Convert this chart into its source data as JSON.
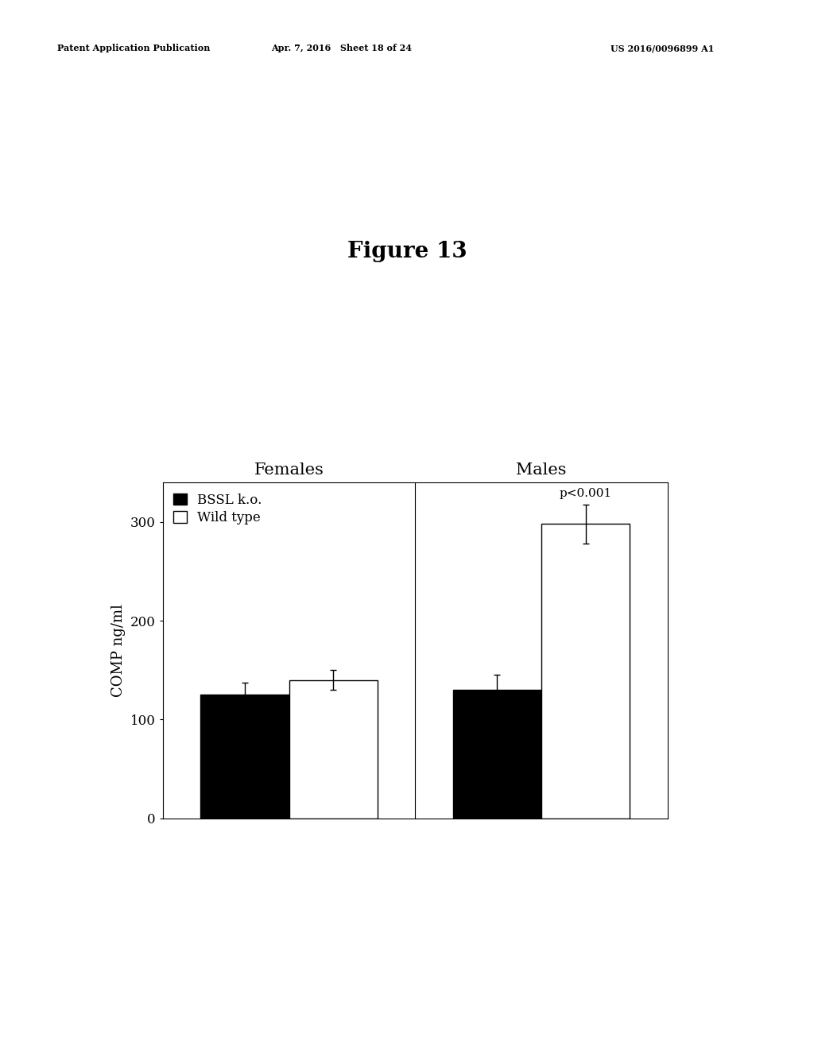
{
  "figure_title": "Figure 13",
  "header_left": "Patent Application Publication",
  "header_mid": "Apr. 7, 2016   Sheet 18 of 24",
  "header_right": "US 2016/0096899 A1",
  "groups": [
    "Females",
    "Males"
  ],
  "series": [
    "BSSL k.o.",
    "Wild type"
  ],
  "bar_colors": [
    "#000000",
    "#ffffff"
  ],
  "bar_edgecolors": [
    "#000000",
    "#000000"
  ],
  "values": [
    [
      125,
      140
    ],
    [
      130,
      298
    ]
  ],
  "errors": [
    [
      12,
      10
    ],
    [
      15,
      20
    ]
  ],
  "ylabel": "COMP ng/ml",
  "ylim": [
    0,
    340
  ],
  "yticks": [
    0,
    100,
    200,
    300
  ],
  "annotation_text": "p<0.001",
  "annotation_group": 1,
  "annotation_series": 1,
  "bar_width": 0.35,
  "background_color": "#ffffff",
  "title_fontsize": 20,
  "axis_fontsize": 13,
  "tick_fontsize": 12,
  "legend_fontsize": 12,
  "group_label_fontsize": 15,
  "annotation_fontsize": 11,
  "header_fontsize": 8
}
